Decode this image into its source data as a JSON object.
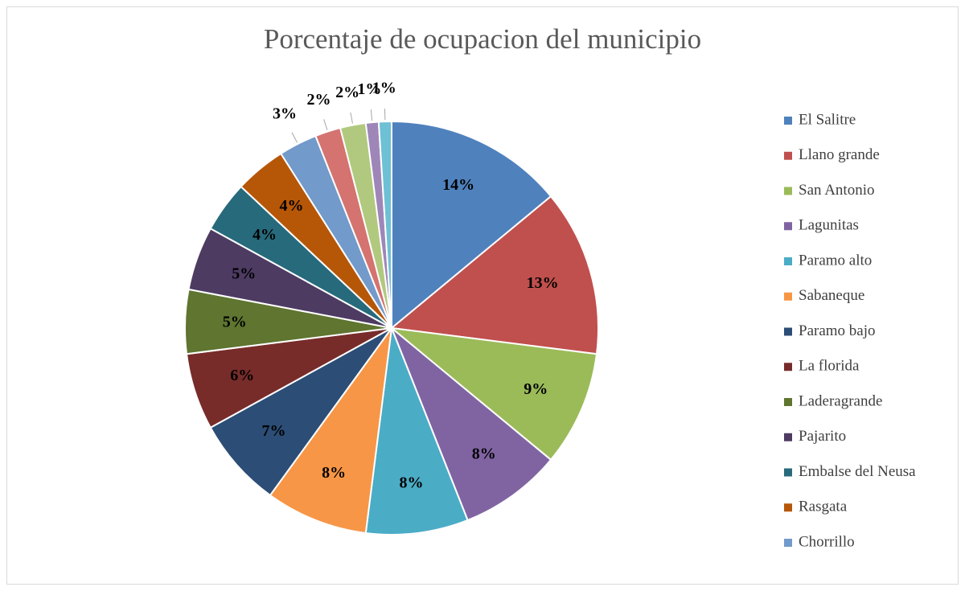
{
  "chart_data": {
    "type": "pie",
    "title": "Porcentaje de ocupacion del municipio",
    "categories": [
      "El Salitre",
      "Llano grande",
      "San Antonio",
      "Lagunitas",
      "Paramo alto",
      "Sabaneque",
      "Paramo bajo",
      "La florida",
      "Laderagrande",
      "Pajarito",
      "Embalse del Neusa",
      "Rasgata",
      "Chorrillo",
      null,
      null,
      null,
      null
    ],
    "values": [
      14,
      13,
      9,
      8,
      8,
      8,
      7,
      6,
      5,
      5,
      4,
      4,
      3,
      2,
      2,
      1,
      1
    ],
    "value_labels": [
      "14%",
      "13%",
      "9%",
      "8%",
      "8%",
      "8%",
      "7%",
      "6%",
      "5%",
      "5%",
      "4%",
      "4%",
      "3%",
      "2%",
      "2%",
      "1%",
      "1%"
    ],
    "colors": [
      "#4f81bd",
      "#c0504d",
      "#9bbb59",
      "#8064a2",
      "#4bacc6",
      "#f79646",
      "#2c4d75",
      "#772c2a",
      "#5f7530",
      "#4d3b62",
      "#276a7c",
      "#b65708",
      "#729aca",
      "#d4736f",
      "#b1c97e",
      "#9e86b9",
      "#6ec0d5"
    ],
    "legend": "right"
  }
}
